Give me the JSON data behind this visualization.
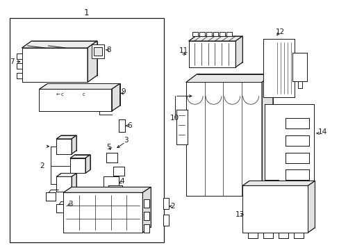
{
  "bg_color": "#ffffff",
  "line_color": "#1a1a1a",
  "figsize": [
    4.89,
    3.6
  ],
  "dpi": 100,
  "lw": 0.7,
  "label_fs": 7.5
}
